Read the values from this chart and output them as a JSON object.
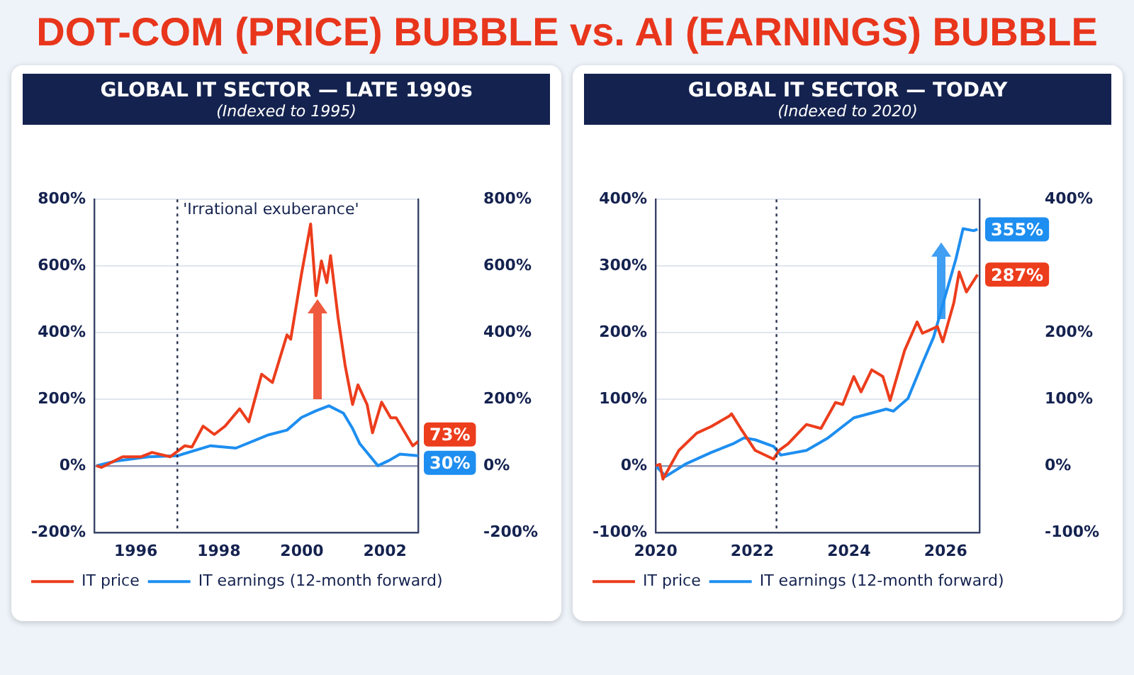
{
  "chart_data": [
    {
      "type": "line",
      "title": "GLOBAL IT SECTOR — LATE 1990s",
      "subtitle": "(Indexed to 1995)",
      "annotations": [
        "DOT-COM (PRICE) BUBBLE vs. AI (EARNINGS) BUBBLE"
      ],
      "series": [
        {
          "name": "IT price",
          "color": "#ec3d1c",
          "x": [
            1995.05,
            1995.17,
            1995.68,
            1996.13,
            1996.39,
            1996.83,
            1997.18,
            1997.35,
            1997.62,
            1997.89,
            1998.15,
            1998.5,
            1998.72,
            1999.03,
            1999.29,
            1999.64,
            1999.73,
            1999.99,
            2000.21,
            2000.34,
            2000.47,
            2000.6,
            2000.69,
            2000.87,
            2001.04,
            2001.22,
            2001.35,
            2001.57,
            2001.7,
            2001.92,
            2002.14,
            2002.27,
            2002.67,
            2002.8
          ],
          "values": [
            0,
            -5,
            27,
            27,
            40,
            27,
            60,
            56,
            119,
            94,
            119,
            171,
            132,
            275,
            250,
            393,
            380,
            576,
            726,
            511,
            615,
            550,
            631,
            446,
            302,
            184,
            243,
            184,
            99,
            191,
            144,
            144,
            60,
            73
          ],
          "value_labels": [
            null,
            null,
            null,
            null,
            null,
            null,
            null,
            null,
            null,
            null,
            null,
            null,
            null,
            null,
            null,
            null,
            null,
            null,
            null,
            null,
            null,
            null,
            null,
            null,
            null,
            null,
            null,
            null,
            null,
            null,
            null,
            null,
            null,
            "73%"
          ]
        },
        {
          "name": "IT earnings (12-month forward)",
          "color": "#1e8ef0",
          "x": [
            1995.05,
            1995.52,
            1996.3,
            1997.0,
            1997.8,
            1998.41,
            1999.2,
            1999.64,
            1999.99,
            2000.34,
            2000.65,
            2001.0,
            2001.22,
            2001.39,
            2001.83,
            2002.1,
            2002.36,
            2002.8
          ],
          "values": [
            0,
            14,
            27,
            30,
            60,
            53,
            93,
            107,
            145,
            165,
            180,
            158,
            112,
            67,
            0,
            16,
            35,
            30
          ],
          "value_labels": [
            null,
            null,
            null,
            null,
            null,
            null,
            null,
            null,
            null,
            null,
            null,
            null,
            null,
            null,
            null,
            null,
            null,
            "30%"
          ]
        }
      ],
      "xlim": [
        1995,
        2002.8
      ],
      "xticks": [
        1996,
        1998,
        2000,
        2002
      ],
      "ylim": [
        -200,
        800
      ],
      "yticks": [
        {
          "value": -200,
          "label": "-200%"
        },
        {
          "value": 0,
          "label": "0%"
        },
        {
          "value": 200,
          "label": "200%"
        },
        {
          "value": 400,
          "label": "400%"
        },
        {
          "value": 600,
          "label": "600%"
        },
        {
          "value": 800,
          "label": "800%"
        }
      ],
      "y2lim": [
        -200,
        800
      ],
      "y2ticks": [
        {
          "value": -200,
          "label": "-200%"
        },
        {
          "value": 0,
          "label": "0%"
        },
        {
          "value": 200,
          "label": "200%"
        },
        {
          "value": 400,
          "label": "400%"
        },
        {
          "value": 600,
          "label": "600%"
        },
        {
          "value": 800,
          "label": "800%"
        }
      ],
      "ref_lines": [
        {
          "axis": "x",
          "value": 1997.0,
          "label": "'Irrational exuberance'",
          "line_style": "dotted"
        }
      ],
      "grid": "y",
      "legend": "bottom"
    },
    {
      "type": "line",
      "title": "GLOBAL IT SECTOR — TODAY",
      "subtitle": "(Indexed to 2020)",
      "series": [
        {
          "name": "IT price",
          "color": "#ec3d1c",
          "x": [
            2020.0,
            2020.09,
            2020.15,
            2020.48,
            2020.85,
            2021.15,
            2021.53,
            2021.57,
            2021.76,
            2022.06,
            2022.44,
            2022.55,
            2022.74,
            2023.12,
            2023.42,
            2023.72,
            2023.87,
            2024.1,
            2024.25,
            2024.47,
            2024.7,
            2024.85,
            2025.15,
            2025.41,
            2025.52,
            2025.83,
            2025.94,
            2026.17,
            2026.28,
            2026.43,
            2026.66
          ],
          "values": [
            0,
            2,
            -20,
            23,
            49,
            59,
            75,
            78,
            56,
            23,
            10,
            23,
            33,
            62,
            56,
            95,
            92,
            134,
            111,
            144,
            134,
            98,
            173,
            216,
            199,
            209,
            186,
            245,
            291,
            261,
            287
          ],
          "value_labels": [
            null,
            null,
            null,
            null,
            null,
            null,
            null,
            null,
            null,
            null,
            null,
            null,
            null,
            null,
            null,
            null,
            null,
            null,
            null,
            null,
            null,
            null,
            null,
            null,
            null,
            null,
            null,
            null,
            null,
            null,
            "287%"
          ]
        },
        {
          "name": "IT earnings (12-month forward)",
          "color": "#1e8ef0",
          "x": [
            2020.0,
            2020.21,
            2020.63,
            2021.15,
            2021.6,
            2021.83,
            2022.06,
            2022.44,
            2022.59,
            2023.12,
            2023.57,
            2024.1,
            2024.77,
            2024.92,
            2025.22,
            2025.52,
            2025.75,
            2025.98,
            2026.21,
            2026.36,
            2026.58,
            2026.66
          ],
          "values": [
            0,
            -16,
            3,
            20,
            33,
            42,
            39,
            29,
            16,
            23,
            42,
            72,
            85,
            82,
            101,
            154,
            193,
            252,
            310,
            356,
            353,
            355
          ],
          "value_labels": [
            null,
            null,
            null,
            null,
            null,
            null,
            null,
            null,
            null,
            null,
            null,
            null,
            null,
            null,
            null,
            null,
            null,
            null,
            null,
            null,
            null,
            "355%"
          ]
        }
      ],
      "xlim": [
        2020,
        2026.7
      ],
      "xticks": [
        2020,
        2022,
        2024,
        2026
      ],
      "ylim": [
        -100,
        400
      ],
      "yticks": [
        {
          "value": -100,
          "label": "-100%"
        },
        {
          "value": 0,
          "label": "0%"
        },
        {
          "value": 100,
          "label": "100%"
        },
        {
          "value": 200,
          "label": "200%"
        },
        {
          "value": 300,
          "label": "300%"
        },
        {
          "value": 400,
          "label": "400%"
        }
      ],
      "y2lim": [
        -100,
        400
      ],
      "y2ticks": [
        {
          "value": -100,
          "label": "-100%"
        },
        {
          "value": 0,
          "label": "0%"
        },
        {
          "value": 100,
          "label": "100%"
        },
        {
          "value": 200,
          "label": "200%"
        },
        {
          "value": 300,
          "label": null
        },
        {
          "value": 400,
          "label": "400%"
        }
      ],
      "ref_lines": [
        {
          "axis": "x",
          "value": 2022.5,
          "label": null,
          "line_style": "dotted"
        }
      ],
      "grid": "y",
      "legend": "bottom"
    }
  ]
}
